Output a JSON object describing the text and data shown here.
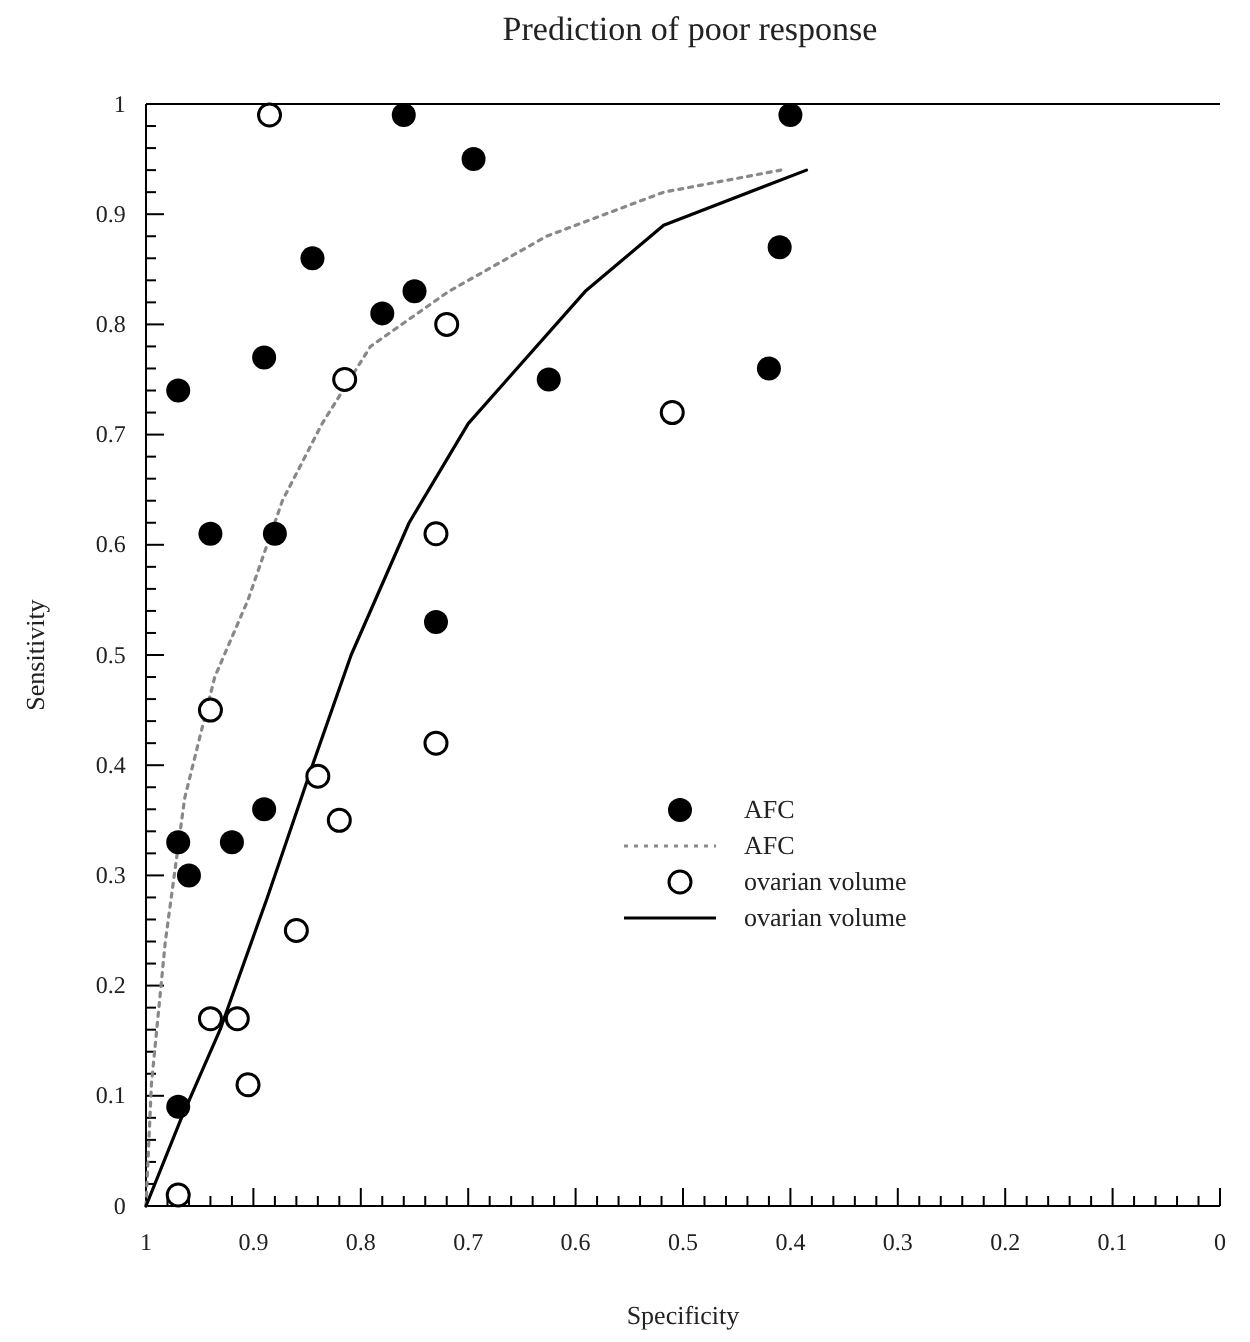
{
  "chart_data": {
    "type": "scatter",
    "title": "Prediction of poor response",
    "xlabel": "Specificity",
    "ylabel": "Sensitivity",
    "xlim": [
      1,
      0
    ],
    "ylim": [
      0,
      1
    ],
    "xticks": [
      1,
      {
        "value": 0.98,
        "label": null
      },
      {
        "value": 0.96,
        "label": null
      },
      {
        "value": 0.94,
        "label": null
      },
      {
        "value": 0.92,
        "label": null
      },
      0.9,
      {
        "value": 0.88,
        "label": null
      },
      {
        "value": 0.86,
        "label": null
      },
      {
        "value": 0.84,
        "label": null
      },
      {
        "value": 0.82,
        "label": null
      },
      0.8,
      {
        "value": 0.78,
        "label": null
      },
      {
        "value": 0.76,
        "label": null
      },
      {
        "value": 0.74,
        "label": null
      },
      {
        "value": 0.72,
        "label": null
      },
      0.7,
      {
        "value": 0.68,
        "label": null
      },
      {
        "value": 0.66,
        "label": null
      },
      {
        "value": 0.64,
        "label": null
      },
      {
        "value": 0.62,
        "label": null
      },
      0.6,
      {
        "value": 0.58,
        "label": null
      },
      {
        "value": 0.56,
        "label": null
      },
      {
        "value": 0.54,
        "label": null
      },
      {
        "value": 0.52,
        "label": null
      },
      0.5,
      {
        "value": 0.48,
        "label": null
      },
      {
        "value": 0.46,
        "label": null
      },
      {
        "value": 0.44,
        "label": null
      },
      {
        "value": 0.42,
        "label": null
      },
      0.4,
      {
        "value": 0.38,
        "label": null
      },
      {
        "value": 0.36,
        "label": null
      },
      {
        "value": 0.34,
        "label": null
      },
      {
        "value": 0.32,
        "label": null
      },
      0.3,
      {
        "value": 0.28,
        "label": null
      },
      {
        "value": 0.26,
        "label": null
      },
      {
        "value": 0.24,
        "label": null
      },
      {
        "value": 0.22,
        "label": null
      },
      0.2,
      {
        "value": 0.18,
        "label": null
      },
      {
        "value": 0.16,
        "label": null
      },
      {
        "value": 0.14,
        "label": null
      },
      {
        "value": 0.12,
        "label": null
      },
      0.1,
      {
        "value": 0.08,
        "label": null
      },
      {
        "value": 0.06,
        "label": null
      },
      {
        "value": 0.04,
        "label": null
      },
      {
        "value": 0.02,
        "label": null
      },
      0
    ],
    "yticks": [
      0,
      {
        "value": 0.02,
        "label": null
      },
      {
        "value": 0.04,
        "label": null
      },
      {
        "value": 0.06,
        "label": null
      },
      {
        "value": 0.08,
        "label": null
      },
      0.1,
      {
        "value": 0.12,
        "label": null
      },
      {
        "value": 0.14,
        "label": null
      },
      {
        "value": 0.16,
        "label": null
      },
      {
        "value": 0.18,
        "label": null
      },
      0.2,
      {
        "value": 0.22,
        "label": null
      },
      {
        "value": 0.24,
        "label": null
      },
      {
        "value": 0.26,
        "label": null
      },
      {
        "value": 0.28,
        "label": null
      },
      0.3,
      {
        "value": 0.32,
        "label": null
      },
      {
        "value": 0.34,
        "label": null
      },
      {
        "value": 0.36,
        "label": null
      },
      {
        "value": 0.38,
        "label": null
      },
      0.4,
      {
        "value": 0.42,
        "label": null
      },
      {
        "value": 0.44,
        "label": null
      },
      {
        "value": 0.46,
        "label": null
      },
      {
        "value": 0.48,
        "label": null
      },
      0.5,
      {
        "value": 0.52,
        "label": null
      },
      {
        "value": 0.54,
        "label": null
      },
      {
        "value": 0.56,
        "label": null
      },
      {
        "value": 0.58,
        "label": null
      },
      0.6,
      {
        "value": 0.62,
        "label": null
      },
      {
        "value": 0.64,
        "label": null
      },
      {
        "value": 0.66,
        "label": null
      },
      {
        "value": 0.68,
        "label": null
      },
      0.7,
      {
        "value": 0.72,
        "label": null
      },
      {
        "value": 0.74,
        "label": null
      },
      {
        "value": 0.76,
        "label": null
      },
      {
        "value": 0.78,
        "label": null
      },
      0.8,
      {
        "value": 0.82,
        "label": null
      },
      {
        "value": 0.84,
        "label": null
      },
      {
        "value": 0.86,
        "label": null
      },
      {
        "value": 0.88,
        "label": null
      },
      0.9,
      {
        "value": 0.92,
        "label": null
      },
      {
        "value": 0.94,
        "label": null
      },
      {
        "value": 0.96,
        "label": null
      },
      {
        "value": 0.98,
        "label": null
      },
      1
    ],
    "grid": false,
    "legend": "right",
    "series": [
      {
        "name": "AFC",
        "marker": "circle",
        "color": "#000000",
        "x": [
          0.97,
          0.97,
          0.96,
          0.92,
          0.89,
          0.73,
          0.97,
          0.94,
          0.88,
          0.89,
          0.845,
          0.78,
          0.75,
          0.76,
          0.695,
          0.625,
          0.4,
          0.41,
          0.42
        ],
        "values": [
          0.09,
          0.33,
          0.3,
          0.33,
          0.36,
          0.53,
          0.74,
          0.61,
          0.61,
          0.77,
          0.86,
          0.81,
          0.83,
          0.99,
          0.95,
          0.75,
          0.99,
          0.87,
          0.76
        ]
      },
      {
        "name": "AFC",
        "type": "line",
        "line_style": "dotted",
        "color": "#888888",
        "x": [
          1,
          0.995,
          0.982,
          0.964,
          0.936,
          0.905,
          0.873,
          0.836,
          0.791,
          0.718,
          0.627,
          0.518,
          0.409
        ],
        "values": [
          0,
          0.11,
          0.24,
          0.37,
          0.48,
          0.55,
          0.64,
          0.71,
          0.78,
          0.83,
          0.88,
          0.92,
          0.94
        ]
      },
      {
        "name": "ovarian volume",
        "marker": "circle-open",
        "color": "#000000",
        "x": [
          0.885,
          0.815,
          0.72,
          0.51,
          0.73,
          0.94,
          0.73,
          0.84,
          0.82,
          0.86,
          0.94,
          0.915,
          0.905,
          0.97
        ],
        "values": [
          0.99,
          0.75,
          0.8,
          0.72,
          0.61,
          0.45,
          0.42,
          0.39,
          0.35,
          0.25,
          0.17,
          0.17,
          0.11,
          0.01
        ]
      },
      {
        "name": "ovarian volume",
        "type": "line",
        "line_style": "solid",
        "color": "#000000",
        "x": [
          1,
          0.967,
          0.931,
          0.887,
          0.845,
          0.809,
          0.755,
          0.7,
          0.591,
          0.518,
          0.385
        ],
        "values": [
          0,
          0.08,
          0.16,
          0.28,
          0.4,
          0.5,
          0.62,
          0.71,
          0.83,
          0.89,
          0.94
        ]
      }
    ]
  }
}
